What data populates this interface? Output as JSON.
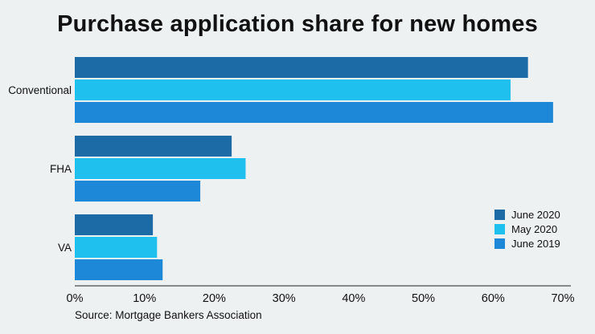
{
  "title": "Purchase application share for new homes",
  "source": "Source: Mortgage Bankers Association",
  "chart_data": {
    "type": "bar",
    "orientation": "horizontal",
    "title": "Purchase application share for new homes",
    "categories": [
      "Conventional",
      "FHA",
      "VA"
    ],
    "series": [
      {
        "name": "June 2020",
        "color": "#1c6aa6",
        "values": [
          65.0,
          22.5,
          11.2
        ]
      },
      {
        "name": "May 2020",
        "color": "#1fc0ee",
        "values": [
          62.5,
          24.5,
          11.8
        ]
      },
      {
        "name": "June 2019",
        "color": "#1e88d8",
        "values": [
          68.6,
          18.0,
          12.6
        ]
      }
    ],
    "xlim": [
      0,
      70
    ],
    "xticks": [
      "0%",
      "10%",
      "20%",
      "30%",
      "40%",
      "50%",
      "60%",
      "70%"
    ],
    "xtick_values": [
      0,
      10,
      20,
      30,
      40,
      50,
      60,
      70
    ],
    "legend_position": "right",
    "grid": false
  }
}
